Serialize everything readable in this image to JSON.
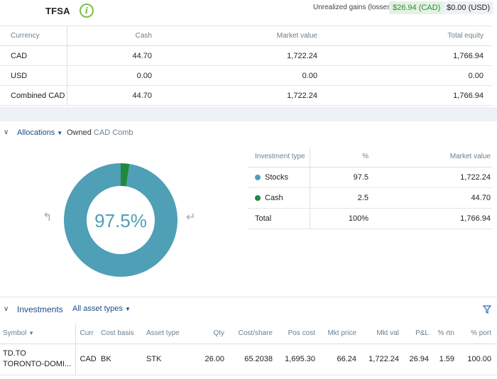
{
  "header": {
    "account": "TFSA",
    "unrealized_label": "Unrealized gains (losses)",
    "unrealized_cad": "$26.94 (CAD)",
    "unrealized_usd": "$0.00 (USD)"
  },
  "balances": {
    "columns": [
      "Currency",
      "Cash",
      "Market value",
      "Total equity"
    ],
    "rows": [
      [
        "CAD",
        "44.70",
        "1,722.24",
        "1,766.94"
      ],
      [
        "USD",
        "0.00",
        "0.00",
        "0.00"
      ],
      [
        "Combined CAD",
        "44.70",
        "1,722.24",
        "1,766.94"
      ]
    ]
  },
  "allocations": {
    "title": "Allocations",
    "owned": "Owned",
    "currency_view": "CAD Comb",
    "donut_label": "97.5%",
    "columns": [
      "Investment type",
      "%",
      "Market value"
    ],
    "rows": [
      {
        "type": "Stocks",
        "pct": "97.5",
        "value": "1,722.24",
        "color": "#4f9fb6"
      },
      {
        "type": "Cash",
        "pct": "2.5",
        "value": "44.70",
        "color": "#1f8a3c"
      }
    ],
    "total": {
      "label": "Total",
      "pct": "100%",
      "value": "1,766.94"
    }
  },
  "chart_data": {
    "type": "pie",
    "categories": [
      "Stocks",
      "Cash"
    ],
    "values": [
      97.5,
      2.5
    ],
    "colors": [
      "#4f9fb6",
      "#1f8a3c"
    ]
  },
  "investments": {
    "title": "Investments",
    "filter": "All asset types",
    "columns": [
      "Symbol",
      "Curr",
      "Cost basis",
      "Asset type",
      "Qty",
      "Cost/share",
      "Pos cost",
      "Mkt price",
      "Mkt val",
      "P&L",
      "% rtn",
      "% port"
    ],
    "rows": [
      {
        "symbol": "TD.TO",
        "name": "TORONTO-DOMI...",
        "curr": "CAD",
        "cost_basis": "BK",
        "asset_type": "STK",
        "qty": "26.00",
        "cost_share": "65.2038",
        "pos_cost": "1,695.30",
        "mkt_price": "66.24",
        "mkt_val": "1,722.24",
        "pnl": "26.94",
        "rtn": "1.59",
        "port": "100.00"
      }
    ]
  }
}
